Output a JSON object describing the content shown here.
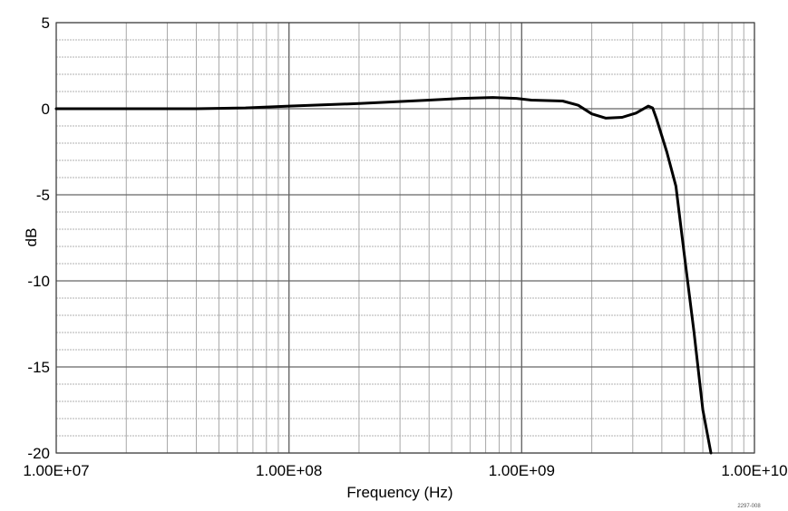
{
  "chart_data": {
    "type": "line",
    "title": "",
    "xlabel": "Frequency (Hz)",
    "ylabel": "dB",
    "x_scale": "log",
    "xlim": [
      10000000.0,
      10000000000.0
    ],
    "ylim": [
      -20,
      5
    ],
    "x_ticks": [
      10000000.0,
      100000000.0,
      1000000000.0,
      10000000000.0
    ],
    "x_tick_labels": [
      "1.00E+07",
      "1.00E+08",
      "1.00E+09",
      "1.00E+10"
    ],
    "y_ticks": [
      5,
      0,
      -5,
      -10,
      -15,
      -20
    ],
    "y_tick_labels": [
      "5",
      "0",
      "-5",
      "-10",
      "-15",
      "-20"
    ],
    "grid": true,
    "legend": "none",
    "line_color": "#000000",
    "grid_color": "#808080",
    "series": [
      {
        "x": [
          10000000.0,
          20000000.0,
          40000000.0,
          65000000.0,
          100000000.0,
          200000000.0,
          400000000.0,
          550000000.0,
          750000000.0,
          950000000.0,
          1100000000.0,
          1500000000.0,
          1750000000.0,
          2000000000.0,
          2300000000.0,
          2700000000.0,
          3100000000.0,
          3500000000.0,
          3650000000.0,
          3800000000.0,
          4200000000.0,
          4600000000.0,
          5000000000.0,
          5500000000.0,
          6000000000.0,
          6500000000.0
        ],
        "y": [
          0.0,
          0.0,
          0.0,
          0.05,
          0.15,
          0.3,
          0.5,
          0.6,
          0.65,
          0.6,
          0.5,
          0.45,
          0.2,
          -0.3,
          -0.55,
          -0.5,
          -0.25,
          0.15,
          0.05,
          -0.6,
          -2.5,
          -4.5,
          -8.5,
          -13.0,
          -17.5,
          -20.0
        ]
      }
    ]
  },
  "figure_code": "2297-008"
}
